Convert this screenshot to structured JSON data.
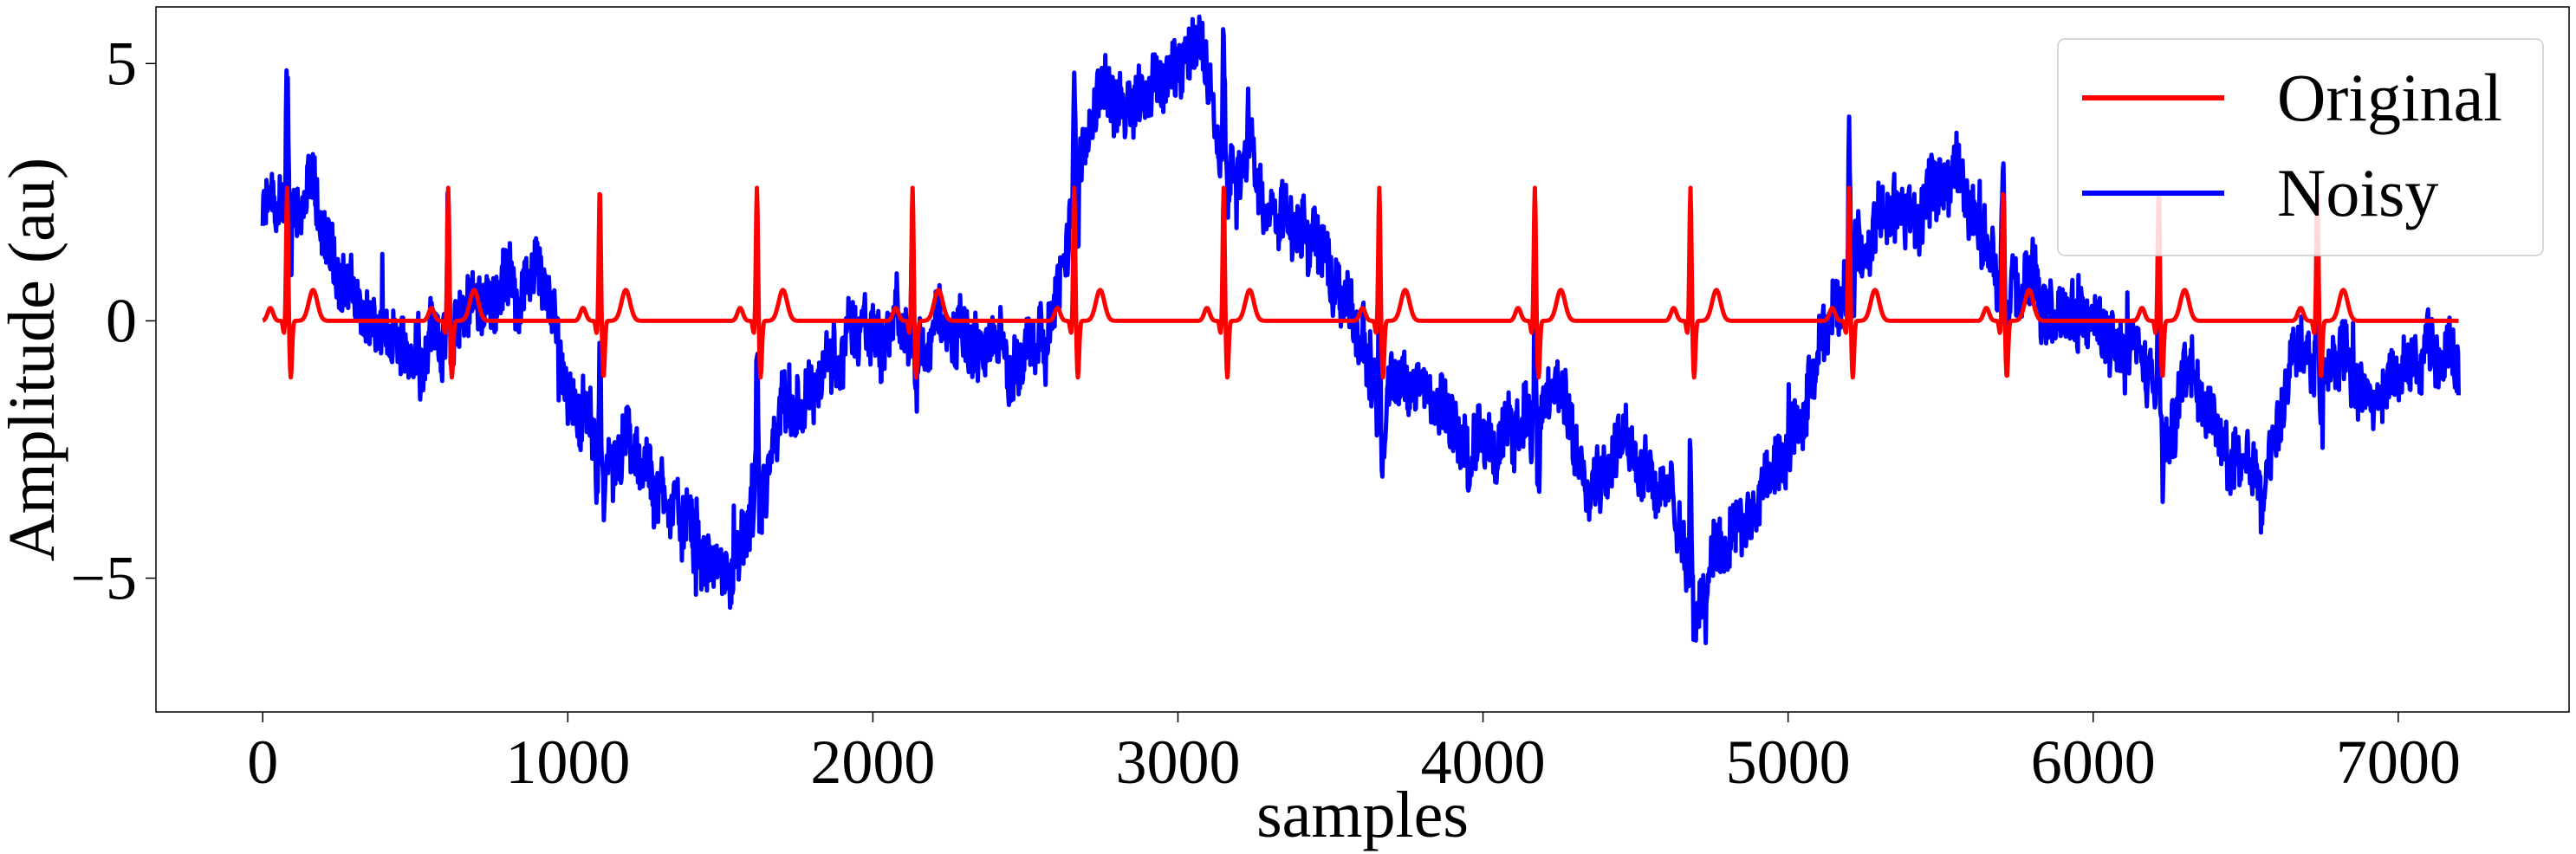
{
  "chart_data": {
    "type": "line",
    "title": "",
    "xlabel": "samples",
    "ylabel": "Amplitude (au)",
    "xlim": [
      -350,
      7560
    ],
    "ylim": [
      -7.6,
      6.1
    ],
    "xticks": [
      0,
      1000,
      2000,
      3000,
      4000,
      5000,
      6000,
      7000
    ],
    "xtick_labels": [
      "0",
      "1000",
      "2000",
      "3000",
      "4000",
      "5000",
      "6000",
      "7000"
    ],
    "yticks": [
      5,
      0,
      -5
    ],
    "ytick_labels": [
      "5",
      "0",
      "−5"
    ],
    "grid": false,
    "legend": "top-right",
    "n_samples": 7200,
    "series": [
      {
        "name": "Original",
        "color": "#ff0000",
        "description": "Periodic ECG-like beats on a flat baseline near 0",
        "beat_r_peaks": [
          80,
          608,
          1105,
          1620,
          2130,
          2660,
          3150,
          3660,
          4170,
          4680,
          5200,
          5705,
          6215,
          6735
        ],
        "beat_amplitudes": {
          "p": 0.25,
          "q": -0.25,
          "r": 2.6,
          "s": -1.1,
          "t": 0.6
        }
      },
      {
        "name": "Noisy",
        "color": "#0000ff",
        "description": "Original signal plus baseline wander and high-frequency noise",
        "baseline_x": [
          0,
          50,
          150,
          250,
          400,
          500,
          650,
          800,
          900,
          1000,
          1100,
          1200,
          1350,
          1450,
          1550,
          1650,
          1800,
          1950,
          2100,
          2250,
          2450,
          2600,
          2700,
          2800,
          2950,
          3080,
          3150,
          3300,
          3450,
          3550,
          3650,
          3800,
          3950,
          4100,
          4200,
          4350,
          4500,
          4600,
          4700,
          4800,
          4950,
          5050,
          5200,
          5350,
          5450,
          5550,
          5600,
          5700,
          5850,
          6000,
          6100,
          6200,
          6250,
          6350,
          6450,
          6550,
          6650,
          6750,
          6850,
          6950,
          7050,
          7150,
          7200
        ],
        "baseline_y": [
          2.0,
          2.0,
          2.0,
          1.0,
          -0.5,
          -0.6,
          0.0,
          0.7,
          1.0,
          -1.5,
          -2.5,
          -2.8,
          -3.6,
          -4.7,
          -5.1,
          -3.2,
          -1.3,
          -0.1,
          -0.3,
          -0.4,
          -0.7,
          0.2,
          3.6,
          4.3,
          4.8,
          5.1,
          3.0,
          2.3,
          1.6,
          0.2,
          -1.3,
          -1.5,
          -2.4,
          -2.3,
          -1.6,
          -2.8,
          -2.4,
          -3.3,
          -5.5,
          -4.2,
          -3.2,
          -2.0,
          1.2,
          1.9,
          2.1,
          2.9,
          2.3,
          0.6,
          0.0,
          0.0,
          -0.6,
          -1.4,
          -2.3,
          -1.1,
          -2.9,
          -3.1,
          -0.6,
          -0.3,
          -1.4,
          -1.5,
          -0.8,
          -0.6,
          -0.5
        ]
      }
    ]
  }
}
